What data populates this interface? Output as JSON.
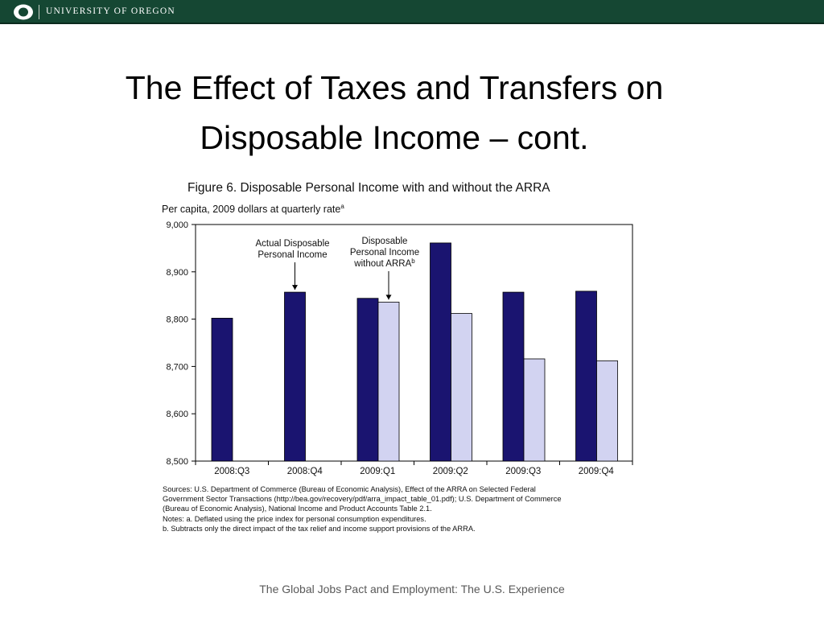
{
  "header": {
    "university": "UNIVERSITY OF OREGON",
    "brand_color": "#154733"
  },
  "slide": {
    "title_line1": "The Effect of Taxes and Transfers on",
    "title_line2": "Disposable Income – cont.",
    "footer": "The Global Jobs Pact and Employment: The U.S. Experience"
  },
  "figure": {
    "title": "Figure 6. Disposable Personal Income with and without the ARRA",
    "subtitle": "Per capita, 2009 dollars at quarterly rate",
    "subtitle_note": "a",
    "sources": [
      "Sources:  U.S. Department of Commerce (Bureau of Economic Analysis), Effect of the ARRA on Selected Federal",
      "Government Sector Transactions (http://bea.gov/recovery/pdf/arra_impact_table_01.pdf); U.S. Department of Commerce",
      "(Bureau of Economic Analysis), National Income and Product Accounts Table 2.1.",
      "Notes:  a. Deflated using the price index for personal consumption expenditures.",
      "b. Subtracts only the direct impact of the tax relief and income support provisions of the ARRA."
    ]
  },
  "chart_data": {
    "type": "bar",
    "categories": [
      "2008:Q3",
      "2008:Q4",
      "2009:Q1",
      "2009:Q2",
      "2009:Q3",
      "2009:Q4"
    ],
    "series": [
      {
        "name": "Actual Disposable Personal Income",
        "color": "#1a1470",
        "values": [
          8802,
          8857,
          8844,
          8961,
          8857,
          8859
        ]
      },
      {
        "name": "Disposable Personal Income without ARRA",
        "color": "#d2d3f1",
        "values": [
          null,
          null,
          8836,
          8812,
          8716,
          8712
        ]
      }
    ],
    "yticks": [
      "9,000",
      "8,900",
      "8,800",
      "8,700",
      "8,600",
      "8,500"
    ],
    "ylim": [
      8500,
      9000
    ],
    "annotations": [
      {
        "lines": [
          "Actual Disposable",
          "Personal Income"
        ],
        "category": "2008:Q4",
        "series": 0
      },
      {
        "lines": [
          "Disposable",
          "Personal Income",
          "without ARRA"
        ],
        "superscript": "b",
        "category": "2009:Q1",
        "series": 1
      }
    ],
    "grid": false,
    "legend": "none"
  }
}
